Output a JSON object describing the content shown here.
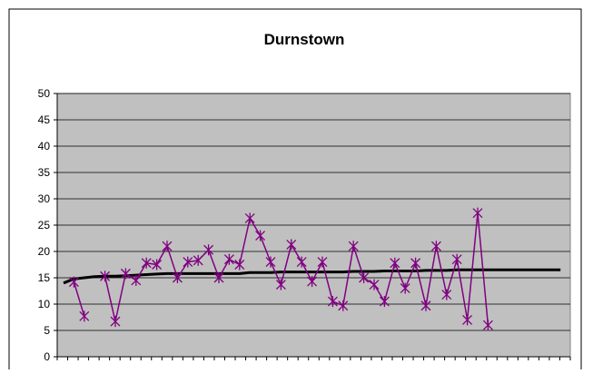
{
  "chart_data": {
    "type": "line",
    "title": "Durnstown",
    "xlabel": "",
    "ylabel": "",
    "ylim": [
      0,
      50
    ],
    "yticks": [
      "0",
      "5",
      "10",
      "15",
      "20",
      "25",
      "30",
      "35",
      "40",
      "45",
      "50"
    ],
    "grid": true,
    "legend": "none",
    "colors": {
      "plot_area": "#c0c0c0",
      "grid": "#000000",
      "observed": "#800080",
      "trend": "#000000"
    },
    "x_count": 49,
    "series": [
      {
        "values": [
          null,
          14.2,
          7.7,
          null,
          15.3,
          6.7,
          15.8,
          14.5,
          17.8,
          17.5,
          21,
          15,
          18,
          18.3,
          20.3,
          15,
          18.5,
          17.5,
          26.3,
          23,
          18,
          13.7,
          21.3,
          18,
          14.3,
          18,
          10.5,
          9.7,
          21,
          15,
          13.7,
          10.5,
          17.8,
          13,
          17.8,
          9.7,
          21,
          11.8,
          18.5,
          7,
          27.3,
          6,
          null,
          null,
          null,
          null,
          null,
          null,
          null
        ],
        "marker": "asterisk",
        "color": "#800080"
      },
      {
        "values": [
          14,
          14.8,
          15,
          15.2,
          15.3,
          15.3,
          15.4,
          15.5,
          15.6,
          15.7,
          15.8,
          15.8,
          15.8,
          15.8,
          15.8,
          15.8,
          15.8,
          15.8,
          16,
          16,
          16,
          16.1,
          16.1,
          16.1,
          16.1,
          16.1,
          16.1,
          16.1,
          16.2,
          16.2,
          16.2,
          16.3,
          16.3,
          16.3,
          16.3,
          16.4,
          16.4,
          16.4,
          16.5,
          16.5,
          16.5,
          16.5,
          16.5,
          16.5,
          16.5,
          16.5,
          16.5,
          16.5,
          16.5
        ],
        "marker": "none",
        "color": "#000000"
      }
    ]
  }
}
